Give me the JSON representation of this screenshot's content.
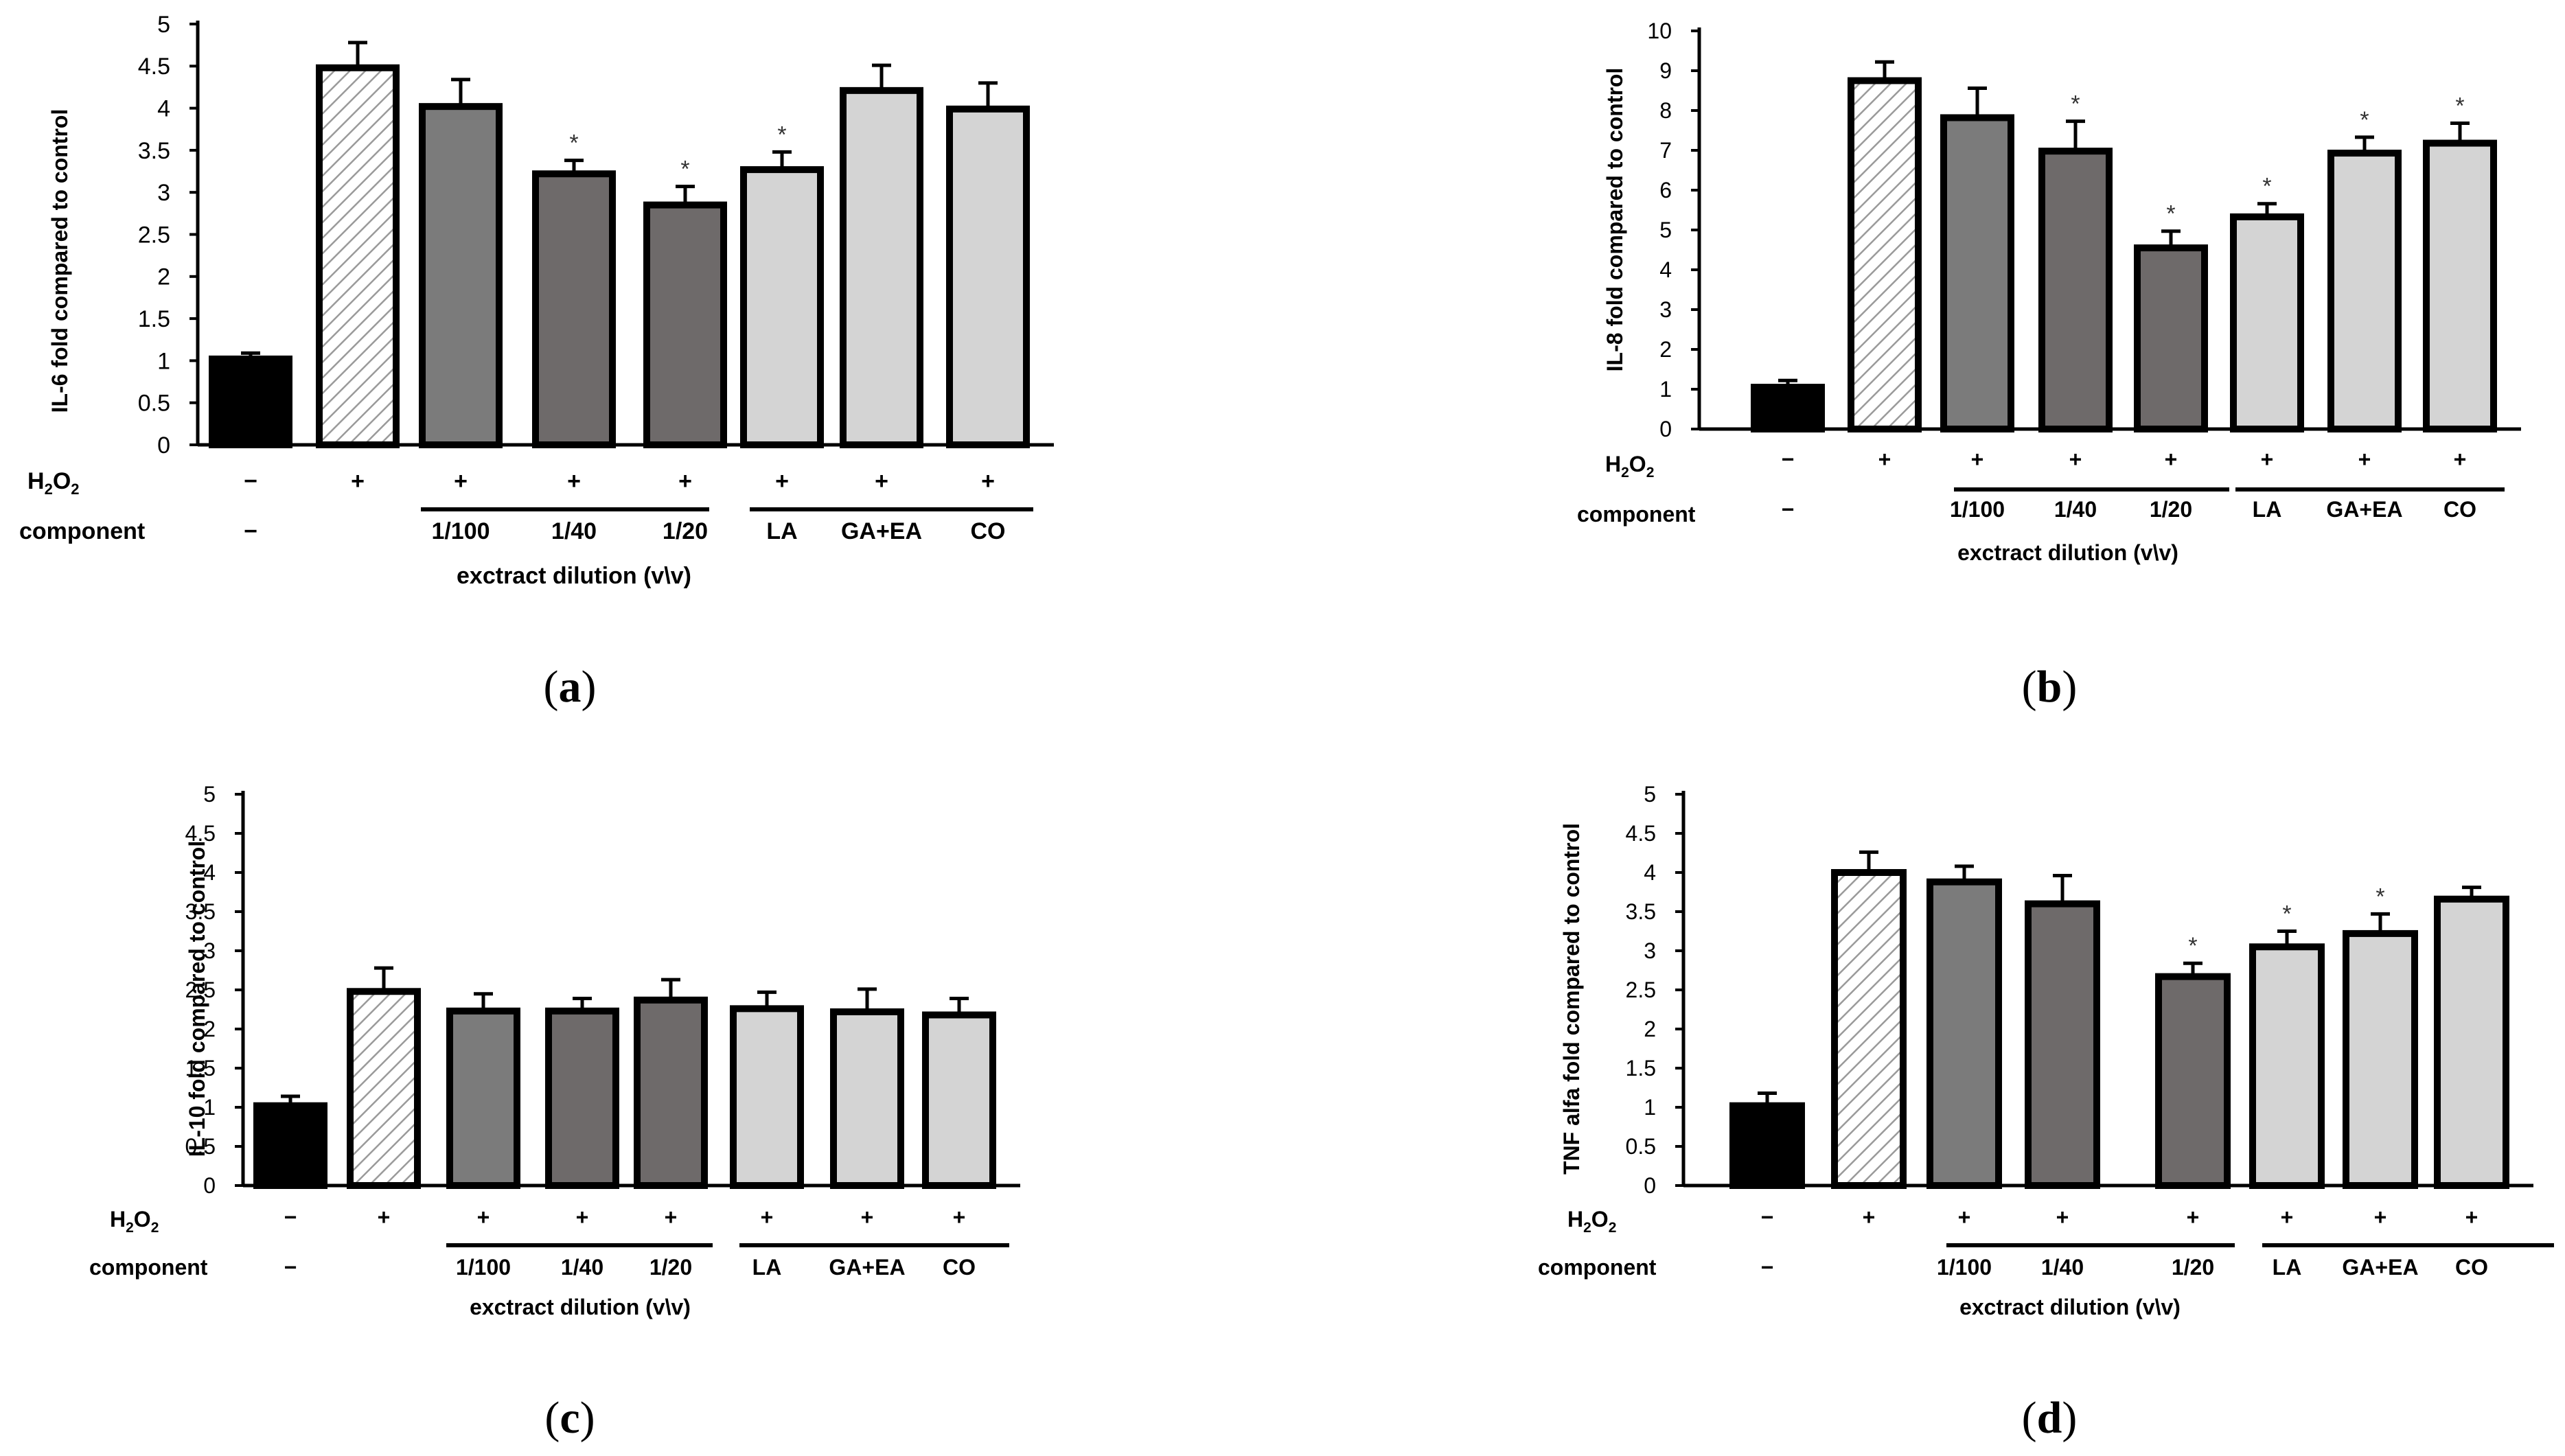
{
  "chart_data": [
    {
      "panel": "(a)",
      "type": "bar",
      "ylabel": "IL-6  fold compared to control",
      "ylim": [
        0,
        5
      ],
      "yticks": [
        "0",
        "0.5",
        "1",
        "1.5",
        "2",
        "2.5",
        "3",
        "3.5",
        "4",
        "4.5",
        "5"
      ],
      "values": [
        1.02,
        4.48,
        4.02,
        3.22,
        2.85,
        3.27,
        4.21,
        3.99
      ],
      "errors": [
        0.07,
        0.3,
        0.32,
        0.16,
        0.22,
        0.21,
        0.3,
        0.31
      ],
      "significant": [
        false,
        false,
        false,
        true,
        true,
        true,
        false,
        false
      ],
      "h2o2": [
        "−",
        "+",
        "+",
        "+",
        "+",
        "+",
        "+",
        "+"
      ],
      "component": [
        "−",
        "",
        "1/100",
        "1/40",
        "1/20",
        "LA",
        "GA+EA",
        "CO"
      ]
    },
    {
      "panel": "(b)",
      "type": "bar",
      "ylabel": "IL-8  fold compared to control",
      "ylim": [
        0,
        10
      ],
      "yticks": [
        "0",
        "1",
        "2",
        "3",
        "4",
        "5",
        "6",
        "7",
        "8",
        "9",
        "10"
      ],
      "values": [
        1.05,
        8.75,
        7.82,
        6.98,
        4.55,
        5.33,
        6.93,
        7.18
      ],
      "errors": [
        0.17,
        0.47,
        0.74,
        0.75,
        0.42,
        0.33,
        0.4,
        0.5
      ],
      "significant": [
        false,
        false,
        false,
        true,
        true,
        true,
        true,
        true
      ],
      "h2o2": [
        "−",
        "+",
        "+",
        "+",
        "+",
        "+",
        "+",
        "+"
      ],
      "component": [
        "−",
        "",
        "1/100",
        "1/40",
        "1/20",
        "LA",
        "GA+EA",
        "CO"
      ]
    },
    {
      "panel": "(c)",
      "type": "bar",
      "ylabel": "IL-10  fold compared to control",
      "ylim": [
        0,
        5
      ],
      "yticks": [
        "0",
        "0.5",
        "1",
        "1.5",
        "2",
        "2.5",
        "3",
        "3.5",
        "4",
        "4.5",
        "5"
      ],
      "values": [
        1.02,
        2.48,
        2.23,
        2.23,
        2.37,
        2.26,
        2.22,
        2.18
      ],
      "errors": [
        0.12,
        0.3,
        0.22,
        0.16,
        0.26,
        0.21,
        0.29,
        0.21
      ],
      "significant": [
        false,
        false,
        false,
        false,
        false,
        false,
        false,
        false
      ],
      "h2o2": [
        "−",
        "+",
        "+",
        "+",
        "+",
        "+",
        "+",
        "+"
      ],
      "component": [
        "−",
        "",
        "1/100",
        "1/40",
        "1/20",
        "LA",
        "GA+EA",
        "CO"
      ]
    },
    {
      "panel": "(d)",
      "type": "bar",
      "ylabel": "TNF alfa  fold compared to control",
      "ylim": [
        0,
        5
      ],
      "yticks": [
        "0",
        "0.5",
        "1",
        "1.5",
        "2",
        "2.5",
        "3",
        "3.5",
        "4",
        "4.5",
        "5"
      ],
      "values": [
        1.02,
        4.0,
        3.88,
        3.6,
        2.67,
        3.05,
        3.22,
        3.66
      ],
      "errors": [
        0.16,
        0.26,
        0.2,
        0.36,
        0.17,
        0.2,
        0.25,
        0.15
      ],
      "significant": [
        false,
        false,
        false,
        false,
        true,
        true,
        true,
        false
      ],
      "h2o2": [
        "−",
        "+",
        "+",
        "+",
        "+",
        "+",
        "+",
        "+"
      ],
      "component": [
        "−",
        "",
        "1/100",
        "1/40",
        "1/20",
        "LA",
        "GA+EA",
        "CO"
      ]
    }
  ],
  "labels": {
    "h2o2_base": "H",
    "h2o2_sub1": "2",
    "h2o2_o": "O",
    "h2o2_sub2": "2",
    "component": "component",
    "dilution": "exctract dilution (v\\v)",
    "significance_mark": "*"
  },
  "captions": {
    "a": "a",
    "b": "b",
    "c": "c",
    "d": "d"
  },
  "colors": {
    "control": "#000000",
    "h2o2_fill": "#ffffff",
    "hatch": "#9a9a9a",
    "extract_light": "#7b7b7b",
    "extract_dark": "#6e6a6a",
    "components": "#d4d4d4",
    "outline": "#000000"
  }
}
